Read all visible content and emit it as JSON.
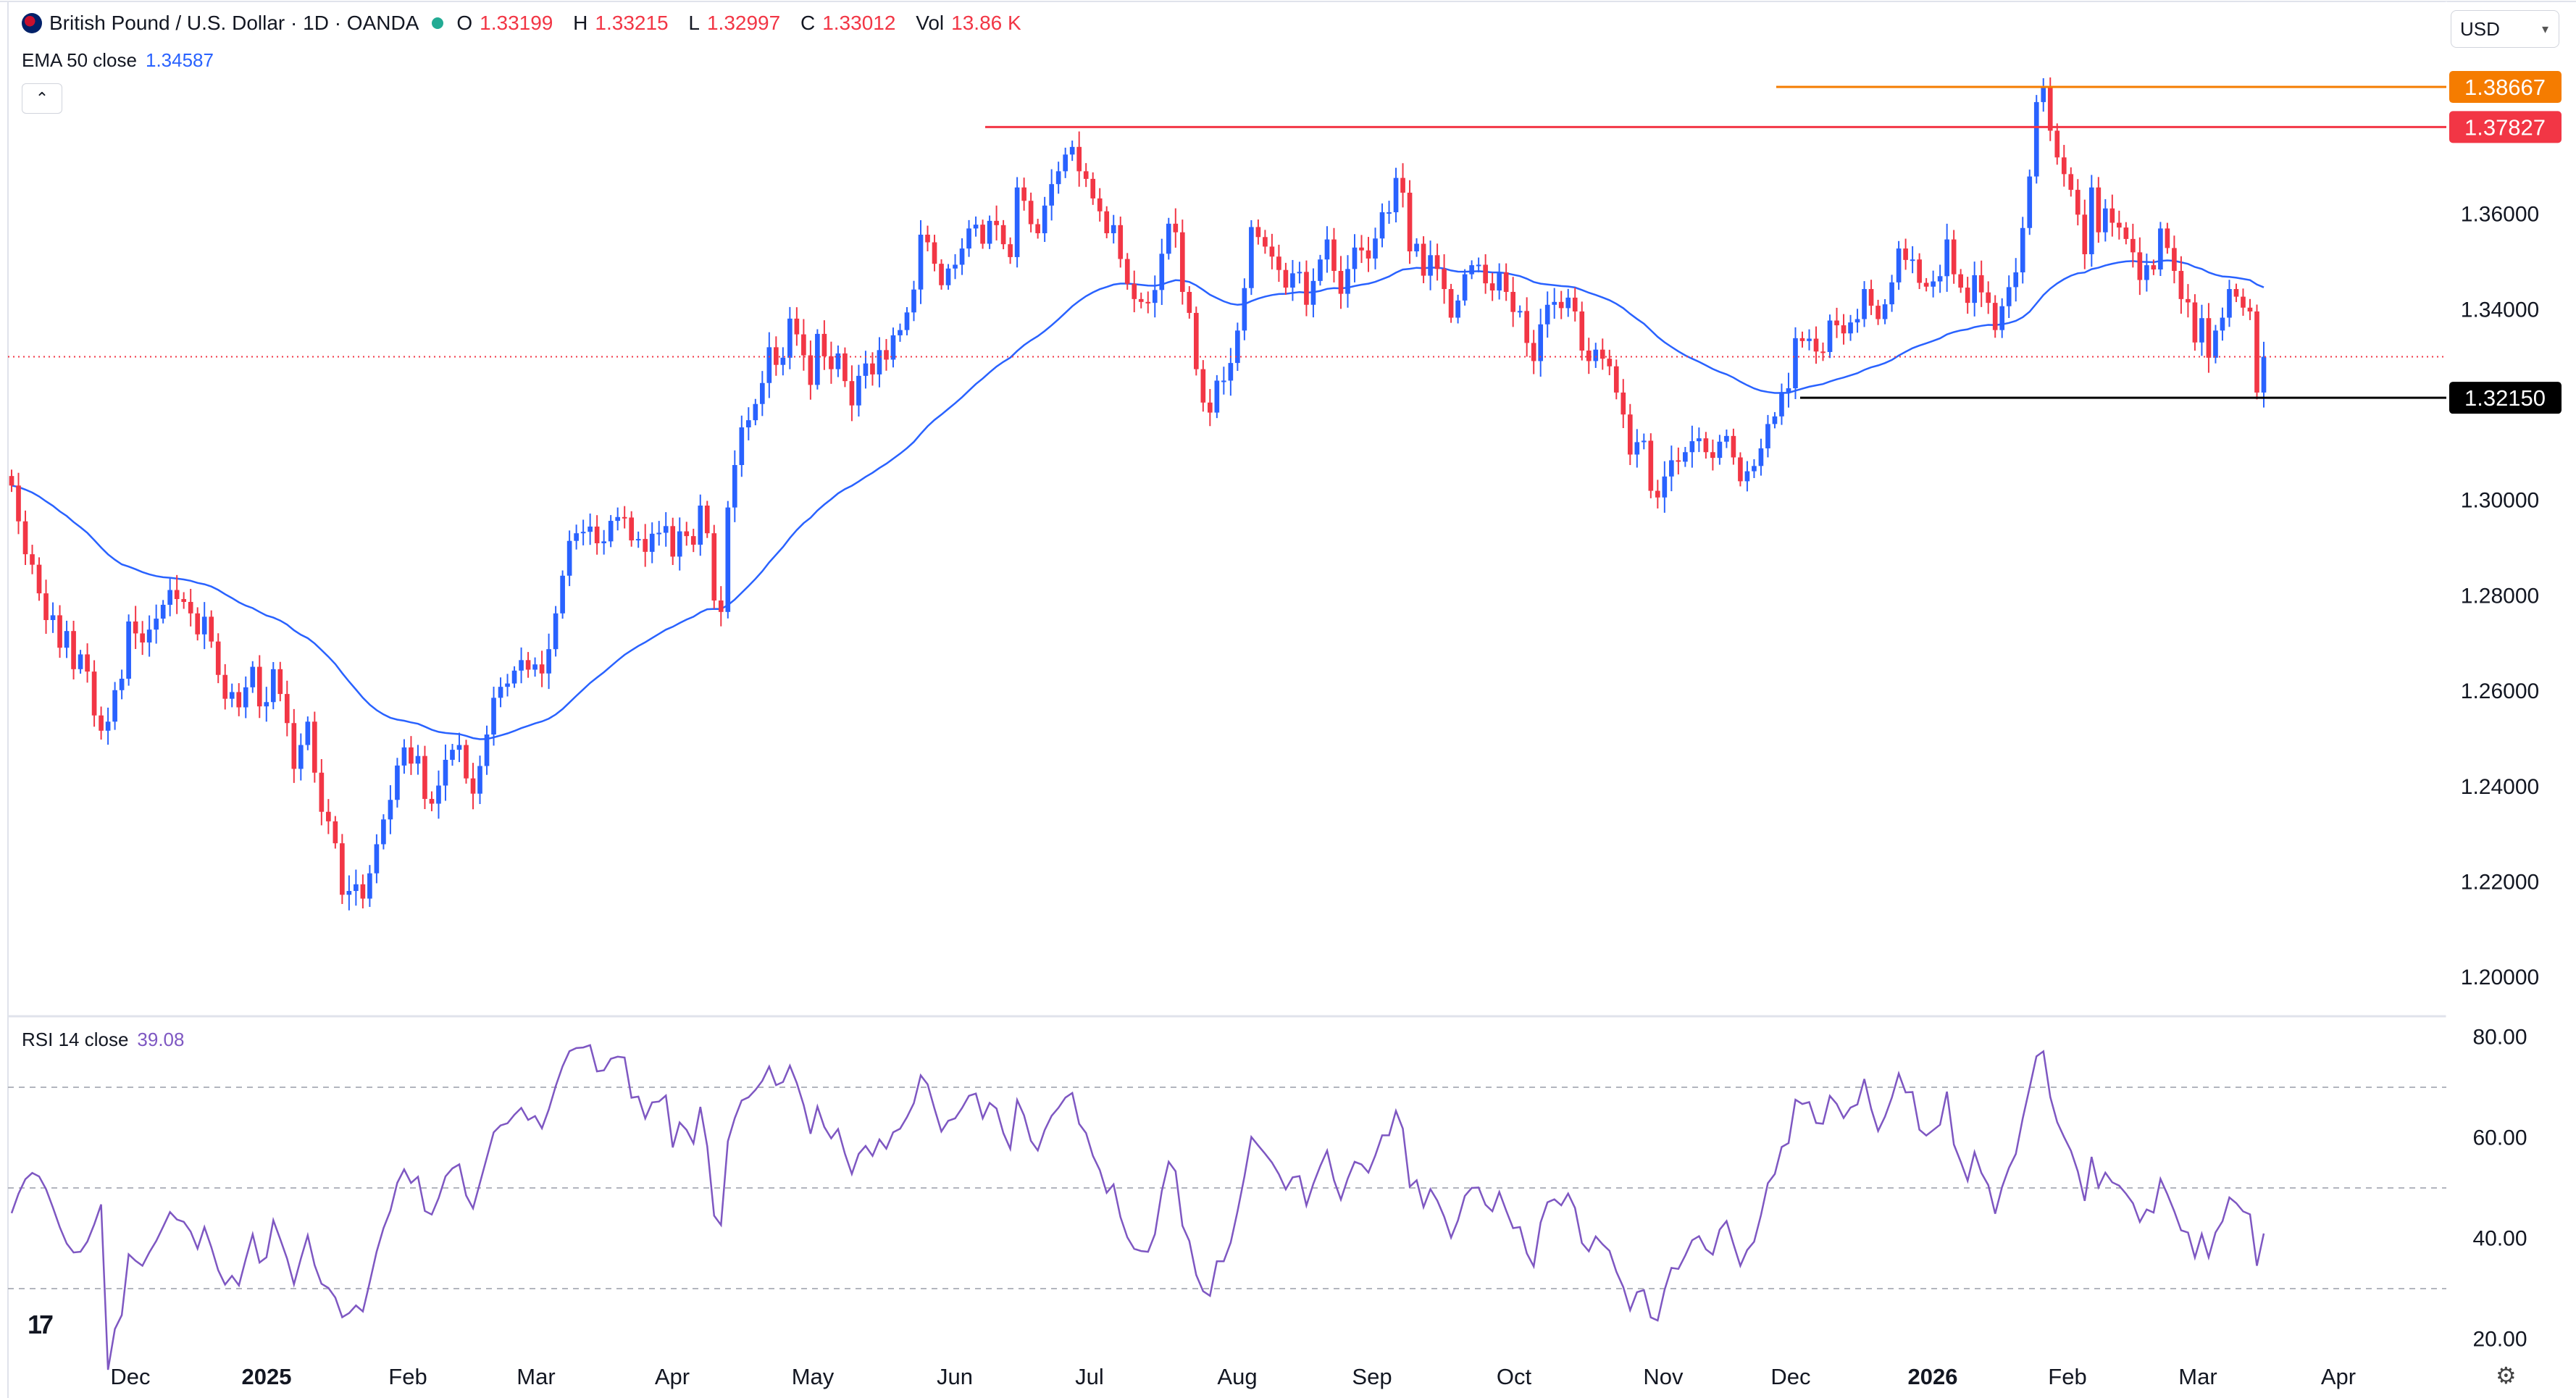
{
  "header": {
    "symbol_title": "British Pound / U.S. Dollar · 1D · OANDA",
    "ohlc": [
      {
        "k": "O",
        "v": "1.33199"
      },
      {
        "k": "H",
        "v": "1.33215"
      },
      {
        "k": "L",
        "v": "1.32997"
      },
      {
        "k": "C",
        "v": "1.33012"
      },
      {
        "k": "Vol",
        "v": "13.86 K"
      }
    ],
    "ema_label": "EMA 50 close",
    "ema_value": "1.34587",
    "currency_button": "USD",
    "rsi_label": "RSI 14 close",
    "rsi_value": "39.08"
  },
  "icons": [
    "flag-icon",
    "status-dot-icon",
    "chevron-up-icon",
    "chevron-down-icon",
    "tradingview-logo-icon",
    "settings-gear-icon"
  ],
  "colors": {
    "up": "#2962ff",
    "down": "#f23645",
    "ema": "#2962ff",
    "rsi": "#7e57c2",
    "resistance": "#f23645",
    "high_line": "#f57c00",
    "support": "#000000",
    "grid_dashed": "#b2b5be"
  },
  "chart_data": [
    {
      "type": "candlestick",
      "title": "British Pound / U.S. Dollar · 1D · OANDA",
      "y_axis": {
        "ticks": [
          "1.20000",
          "1.22000",
          "1.24000",
          "1.26000",
          "1.28000",
          "1.30000",
          "1.32000",
          "1.34000",
          "1.36000"
        ],
        "ylim": [
          1.195,
          1.39
        ]
      },
      "x_axis": {
        "ticks": [
          "Dec",
          "2025",
          "Feb",
          "Mar",
          "Apr",
          "May",
          "Jun",
          "Jul",
          "Aug",
          "Sep",
          "Oct",
          "Nov",
          "Dec",
          "2026",
          "Feb",
          "Mar",
          "Apr"
        ],
        "bold_ticks": [
          "2025",
          "2026"
        ]
      },
      "series": [
        {
          "name": "EMA 50 close",
          "type": "line"
        }
      ],
      "closes": [
        1.3031,
        1.2956,
        1.2887,
        1.2865,
        1.2805,
        1.2749,
        1.2759,
        1.2691,
        1.2726,
        1.2646,
        1.2677,
        1.2641,
        1.2549,
        1.2517,
        1.2536,
        1.2602,
        1.2626,
        1.2746,
        1.2721,
        1.2702,
        1.2729,
        1.2752,
        1.2781,
        1.2812,
        1.2793,
        1.2787,
        1.2763,
        1.2719,
        1.2756,
        1.2704,
        1.2634,
        1.2584,
        1.2598,
        1.2566,
        1.2608,
        1.2651,
        1.2568,
        1.2577,
        1.2646,
        1.2594,
        1.2533,
        1.2437,
        1.2487,
        1.2536,
        1.2429,
        1.2347,
        1.2327,
        1.2281,
        1.2173,
        1.2181,
        1.2195,
        1.2165,
        1.2218,
        1.2279,
        1.2331,
        1.2372,
        1.2444,
        1.2482,
        1.2448,
        1.2464,
        1.2374,
        1.2364,
        1.2402,
        1.2456,
        1.2477,
        1.2487,
        1.2417,
        1.2385,
        1.2443,
        1.2509,
        1.2586,
        1.2609,
        1.2616,
        1.2643,
        1.2665,
        1.2645,
        1.2656,
        1.2637,
        1.2688,
        1.2763,
        1.2842,
        1.2915,
        1.2931,
        1.2934,
        1.2945,
        1.291,
        1.2914,
        1.2957,
        1.2965,
        1.2964,
        1.2916,
        1.2919,
        1.2892,
        1.293,
        1.2932,
        1.2946,
        1.2882,
        1.2935,
        1.2925,
        1.2907,
        1.2989,
        1.2931,
        1.279,
        1.2766,
        1.2985,
        1.3074,
        1.3153,
        1.3168,
        1.3202,
        1.3246,
        1.3321,
        1.3284,
        1.3299,
        1.3381,
        1.3348,
        1.3304,
        1.3242,
        1.3349,
        1.3302,
        1.3275,
        1.3308,
        1.325,
        1.3199,
        1.3261,
        1.3287,
        1.3264,
        1.3315,
        1.3295,
        1.3346,
        1.3357,
        1.3394,
        1.3442,
        1.3557,
        1.3541,
        1.3496,
        1.3451,
        1.3486,
        1.3494,
        1.3528,
        1.357,
        1.3578,
        1.3538,
        1.3586,
        1.3577,
        1.3537,
        1.351,
        1.3656,
        1.3628,
        1.3579,
        1.356,
        1.3618,
        1.3663,
        1.369,
        1.3725,
        1.3741,
        1.369,
        1.3674,
        1.3633,
        1.3606,
        1.356,
        1.3577,
        1.3506,
        1.3454,
        1.3422,
        1.3416,
        1.3414,
        1.3441,
        1.3517,
        1.358,
        1.3562,
        1.3437,
        1.3393,
        1.3275,
        1.3205,
        1.3184,
        1.3251,
        1.3251,
        1.3288,
        1.3356,
        1.3445,
        1.3573,
        1.3552,
        1.3532,
        1.3511,
        1.3483,
        1.3446,
        1.3476,
        1.3479,
        1.341,
        1.346,
        1.3505,
        1.3547,
        1.3481,
        1.3433,
        1.3485,
        1.353,
        1.3524,
        1.3507,
        1.3549,
        1.3604,
        1.3604,
        1.3676,
        1.3645,
        1.3522,
        1.3538,
        1.3471,
        1.3514,
        1.3485,
        1.3443,
        1.3383,
        1.3419,
        1.3474,
        1.3493,
        1.3494,
        1.3455,
        1.344,
        1.3478,
        1.3437,
        1.3395,
        1.3397,
        1.333,
        1.3292,
        1.3369,
        1.341,
        1.3416,
        1.3403,
        1.3425,
        1.3396,
        1.3314,
        1.3292,
        1.3316,
        1.3297,
        1.3281,
        1.3226,
        1.318,
        1.3096,
        1.3122,
        1.3125,
        1.302,
        1.3006,
        1.305,
        1.3084,
        1.3081,
        1.3101,
        1.3124,
        1.313,
        1.3101,
        1.3089,
        1.3123,
        1.3135,
        1.309,
        1.304,
        1.3061,
        1.3072,
        1.3109,
        1.316,
        1.3176,
        1.3227,
        1.3235,
        1.334,
        1.3334,
        1.3339,
        1.3312,
        1.3311,
        1.3377,
        1.3367,
        1.335,
        1.3373,
        1.338,
        1.3443,
        1.3408,
        1.338,
        1.3411,
        1.3457,
        1.3528,
        1.3504,
        1.3505,
        1.3456,
        1.3448,
        1.3459,
        1.347,
        1.3547,
        1.3474,
        1.3446,
        1.3414,
        1.3472,
        1.3436,
        1.3414,
        1.3357,
        1.3407,
        1.3447,
        1.3478,
        1.3571,
        1.3679,
        1.3835,
        1.3865,
        1.3775,
        1.3719,
        1.3684,
        1.3651,
        1.3599,
        1.3516,
        1.3656,
        1.3562,
        1.3612,
        1.3582,
        1.3572,
        1.3548,
        1.352,
        1.3462,
        1.3493,
        1.3484,
        1.357,
        1.3529,
        1.3481,
        1.3422,
        1.3415,
        1.3331,
        1.3382,
        1.3299,
        1.3356,
        1.3383,
        1.3443,
        1.3427,
        1.3404,
        1.3396,
        1.3226,
        1.3301
      ]
    },
    {
      "type": "line",
      "title": "RSI 14 close",
      "ylim": [
        18,
        82
      ],
      "y_ticks": [
        "20.00",
        "40.00",
        "60.00",
        "80.00"
      ],
      "bands": [
        30,
        50,
        70
      ]
    }
  ],
  "price_labels": {
    "high": "1.38667",
    "resistance": "1.37827",
    "support": "1.32150"
  }
}
